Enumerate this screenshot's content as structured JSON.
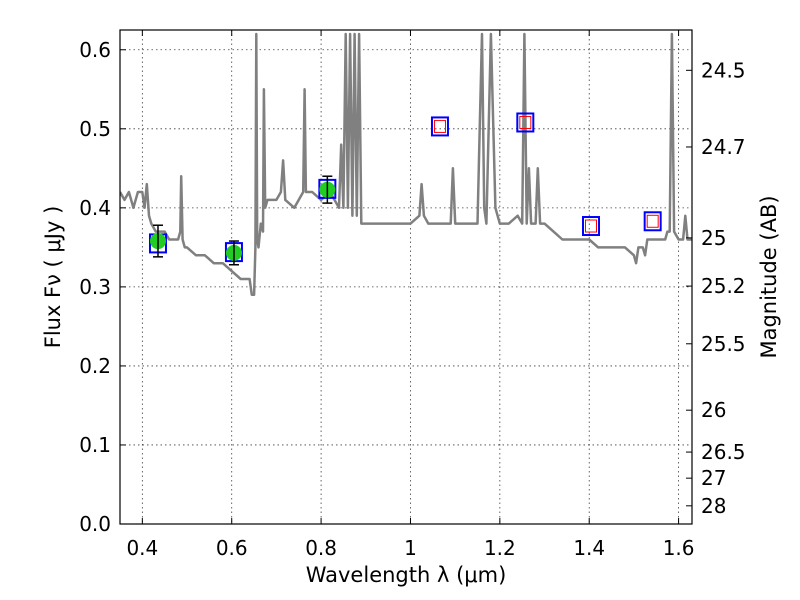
{
  "chart_data": {
    "type": "line",
    "xlabel": "Wavelength  λ (μm)",
    "ylabel": "Flux  Fν  ( μJy )",
    "y2label": "Magnitude (AB)",
    "xlim": [
      0.35,
      1.63
    ],
    "ylim": [
      0.0,
      0.625
    ],
    "grid": true,
    "x_ticks": [
      0.4,
      0.6,
      0.8,
      1.0,
      1.2,
      1.4,
      1.6
    ],
    "x_tick_labels": [
      "0.4",
      "0.6",
      "0.8",
      "1",
      "1.2",
      "1.4",
      "1.6"
    ],
    "y_ticks": [
      0.0,
      0.1,
      0.2,
      0.3,
      0.4,
      0.5,
      0.6
    ],
    "y_tick_labels": [
      "0.0",
      "0.1",
      "0.2",
      "0.3",
      "0.4",
      "0.5",
      "0.6"
    ],
    "y2_ticks": [
      {
        "label": "24.5",
        "flux": 0.574
      },
      {
        "label": "24.7",
        "flux": 0.477
      },
      {
        "label": "25",
        "flux": 0.362
      },
      {
        "label": "25.2",
        "flux": 0.301
      },
      {
        "label": "25.5",
        "flux": 0.228
      },
      {
        "label": "26",
        "flux": 0.144
      },
      {
        "label": "26.5",
        "flux": 0.091
      },
      {
        "label": "27",
        "flux": 0.058
      },
      {
        "label": "28",
        "flux": 0.023
      }
    ],
    "colors": {
      "model": "#808080",
      "observed": "#22cc22",
      "box": "#0000ff",
      "inner_box": "#ff0000",
      "errorbar": "#000000"
    },
    "model_spectrum": {
      "x": [
        0.35,
        0.36,
        0.37,
        0.38,
        0.39,
        0.4,
        0.405,
        0.41,
        0.415,
        0.42,
        0.43,
        0.44,
        0.45,
        0.46,
        0.47,
        0.48,
        0.485,
        0.487,
        0.49,
        0.495,
        0.5,
        0.52,
        0.54,
        0.56,
        0.58,
        0.6,
        0.62,
        0.64,
        0.645,
        0.65,
        0.653,
        0.655,
        0.657,
        0.66,
        0.665,
        0.67,
        0.672,
        0.675,
        0.68,
        0.7,
        0.71,
        0.715,
        0.72,
        0.74,
        0.76,
        0.763,
        0.766,
        0.78,
        0.8,
        0.82,
        0.83,
        0.84,
        0.845,
        0.85,
        0.855,
        0.86,
        0.865,
        0.87,
        0.875,
        0.88,
        0.885,
        0.89,
        0.9,
        0.92,
        0.94,
        0.96,
        0.98,
        1.0,
        1.02,
        1.025,
        1.03,
        1.04,
        1.06,
        1.08,
        1.09,
        1.095,
        1.1,
        1.12,
        1.14,
        1.15,
        1.155,
        1.16,
        1.165,
        1.17,
        1.18,
        1.19,
        1.2,
        1.22,
        1.24,
        1.25,
        1.255,
        1.26,
        1.265,
        1.27,
        1.28,
        1.285,
        1.29,
        1.3,
        1.32,
        1.34,
        1.36,
        1.38,
        1.4,
        1.42,
        1.44,
        1.46,
        1.48,
        1.5,
        1.505,
        1.51,
        1.52,
        1.525,
        1.53,
        1.54,
        1.56,
        1.57,
        1.575,
        1.58,
        1.585,
        1.59,
        1.6,
        1.61,
        1.615,
        1.62,
        1.63
      ],
      "y": [
        0.42,
        0.41,
        0.42,
        0.4,
        0.42,
        0.42,
        0.4,
        0.43,
        0.39,
        0.38,
        0.37,
        0.37,
        0.37,
        0.36,
        0.36,
        0.36,
        0.37,
        0.44,
        0.36,
        0.35,
        0.35,
        0.34,
        0.34,
        0.33,
        0.33,
        0.32,
        0.31,
        0.31,
        0.29,
        0.29,
        0.35,
        0.62,
        0.36,
        0.35,
        0.38,
        0.37,
        0.55,
        0.4,
        0.41,
        0.41,
        0.42,
        0.46,
        0.41,
        0.4,
        0.42,
        0.55,
        0.42,
        0.42,
        0.41,
        0.42,
        0.41,
        0.4,
        0.48,
        0.4,
        0.62,
        0.4,
        0.62,
        0.39,
        0.62,
        0.39,
        0.62,
        0.38,
        0.38,
        0.38,
        0.38,
        0.38,
        0.38,
        0.38,
        0.39,
        0.43,
        0.39,
        0.38,
        0.38,
        0.38,
        0.38,
        0.45,
        0.38,
        0.38,
        0.38,
        0.38,
        0.5,
        0.62,
        0.4,
        0.38,
        0.62,
        0.4,
        0.38,
        0.38,
        0.39,
        0.38,
        0.62,
        0.38,
        0.45,
        0.38,
        0.38,
        0.45,
        0.38,
        0.38,
        0.37,
        0.36,
        0.36,
        0.36,
        0.36,
        0.35,
        0.35,
        0.35,
        0.35,
        0.34,
        0.33,
        0.35,
        0.35,
        0.34,
        0.36,
        0.36,
        0.36,
        0.36,
        0.37,
        0.37,
        0.62,
        0.37,
        0.36,
        0.36,
        0.39,
        0.36,
        0.36
      ]
    },
    "observed": {
      "x": [
        0.435,
        0.605,
        0.814
      ],
      "y": [
        0.358,
        0.343,
        0.423
      ],
      "yerr": [
        0.02,
        0.015,
        0.017
      ]
    },
    "model_bands": {
      "x": [
        0.435,
        0.605,
        0.814,
        1.066,
        1.257,
        1.404,
        1.542
      ],
      "y": [
        0.355,
        0.344,
        0.424,
        0.503,
        0.508,
        0.377,
        0.383
      ],
      "upper_limit": [
        false,
        false,
        false,
        true,
        true,
        true,
        true
      ]
    }
  }
}
